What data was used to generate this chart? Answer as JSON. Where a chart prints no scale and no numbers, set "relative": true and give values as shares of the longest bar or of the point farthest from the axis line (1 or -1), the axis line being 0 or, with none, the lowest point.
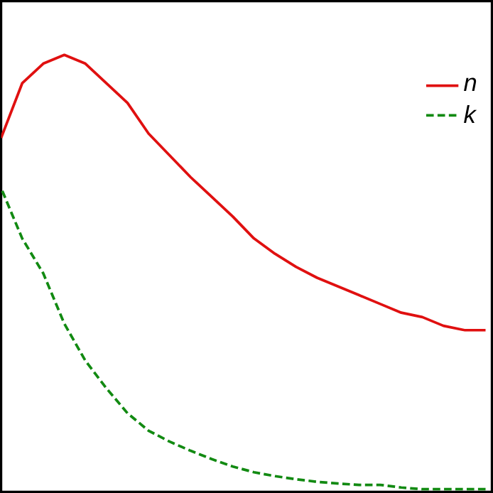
{
  "chart_data": {
    "type": "line",
    "relative": true,
    "legend": "top right",
    "categories": [
      null,
      null,
      null,
      null,
      null,
      null,
      null,
      null,
      null,
      null,
      null,
      null,
      null,
      null,
      null,
      null,
      null,
      null,
      null,
      null,
      null,
      null,
      null,
      null
    ],
    "series": [
      {
        "name": "n",
        "color": "#e01010",
        "line_style": "solid",
        "values": [
          0.81,
          0.935,
          0.98,
          1.0,
          0.98,
          0.935,
          0.89,
          0.82,
          0.77,
          0.72,
          0.675,
          0.63,
          0.58,
          0.545,
          0.515,
          0.49,
          0.47,
          0.45,
          0.43,
          0.41,
          0.4,
          0.38,
          0.37,
          0.37
        ]
      },
      {
        "name": "k",
        "color": "#128a12",
        "line_style": "dashed",
        "values": [
          0.695,
          0.58,
          0.5,
          0.385,
          0.3,
          0.237,
          0.18,
          0.14,
          0.115,
          0.094,
          0.075,
          0.058,
          0.045,
          0.036,
          0.029,
          0.023,
          0.019,
          0.016,
          0.016,
          0.01,
          0.006,
          0.006,
          0.006,
          0.006
        ]
      }
    ]
  }
}
